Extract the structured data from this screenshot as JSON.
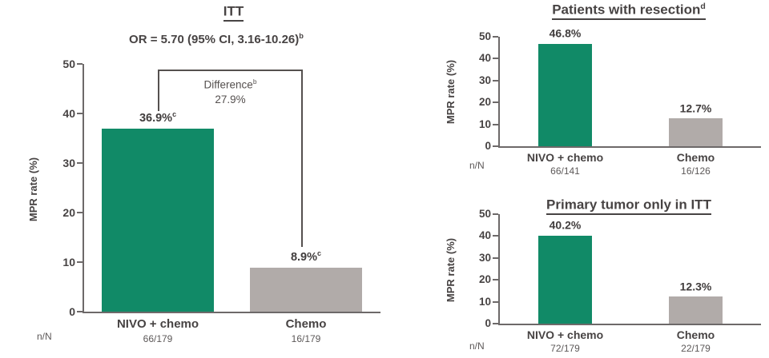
{
  "colors": {
    "green": "#118A67",
    "gray": "#B1ABA9",
    "title_text": "#474343",
    "muted_text": "#5C5858",
    "axis": "#6D6969",
    "bracket": "#55504F"
  },
  "chart_data": [
    {
      "type": "bar",
      "title": "ITT",
      "title_sup": "",
      "subtitle": "OR = 5.70 (95% CI, 3.16-10.26)",
      "subtitle_sup": "b",
      "ylabel": "MPR rate (%)",
      "yticks": [
        0,
        10,
        20,
        30,
        40,
        50
      ],
      "ylim": [
        0,
        50
      ],
      "grid": false,
      "nn_label": "n/N",
      "annotation": {
        "label": "Difference",
        "label_sup": "b",
        "value": "27.9%"
      },
      "categories": [
        "NIVO + chemo",
        "Chemo"
      ],
      "bars": [
        {
          "category": "NIVO + chemo",
          "value": 36.9,
          "value_label": "36.9%",
          "value_sup": "c",
          "n_N": "66/179",
          "color": "green"
        },
        {
          "category": "Chemo",
          "value": 8.9,
          "value_label": "8.9%",
          "value_sup": "c",
          "n_N": "16/179",
          "color": "gray"
        }
      ]
    },
    {
      "type": "bar",
      "title": "Patients with resection",
      "title_sup": "d",
      "ylabel": "MPR rate (%)",
      "yticks": [
        0,
        10,
        20,
        30,
        40,
        50
      ],
      "ylim": [
        0,
        50
      ],
      "grid": false,
      "nn_label": "n/N",
      "categories": [
        "NIVO + chemo",
        "Chemo"
      ],
      "bars": [
        {
          "category": "NIVO + chemo",
          "value": 46.8,
          "value_label": "46.8%",
          "value_sup": "",
          "n_N": "66/141",
          "color": "green"
        },
        {
          "category": "Chemo",
          "value": 12.7,
          "value_label": "12.7%",
          "value_sup": "",
          "n_N": "16/126",
          "color": "gray"
        }
      ]
    },
    {
      "type": "bar",
      "title": "Primary tumor only in ITT",
      "title_sup": "",
      "ylabel": "MPR rate (%)",
      "yticks": [
        0,
        10,
        20,
        30,
        40,
        50
      ],
      "ylim": [
        0,
        50
      ],
      "grid": false,
      "nn_label": "n/N",
      "categories": [
        "NIVO + chemo",
        "Chemo"
      ],
      "bars": [
        {
          "category": "NIVO + chemo",
          "value": 40.2,
          "value_label": "40.2%",
          "value_sup": "",
          "n_N": "72/179",
          "color": "green"
        },
        {
          "category": "Chemo",
          "value": 12.3,
          "value_label": "12.3%",
          "value_sup": "",
          "n_N": "22/179",
          "color": "gray"
        }
      ]
    }
  ]
}
